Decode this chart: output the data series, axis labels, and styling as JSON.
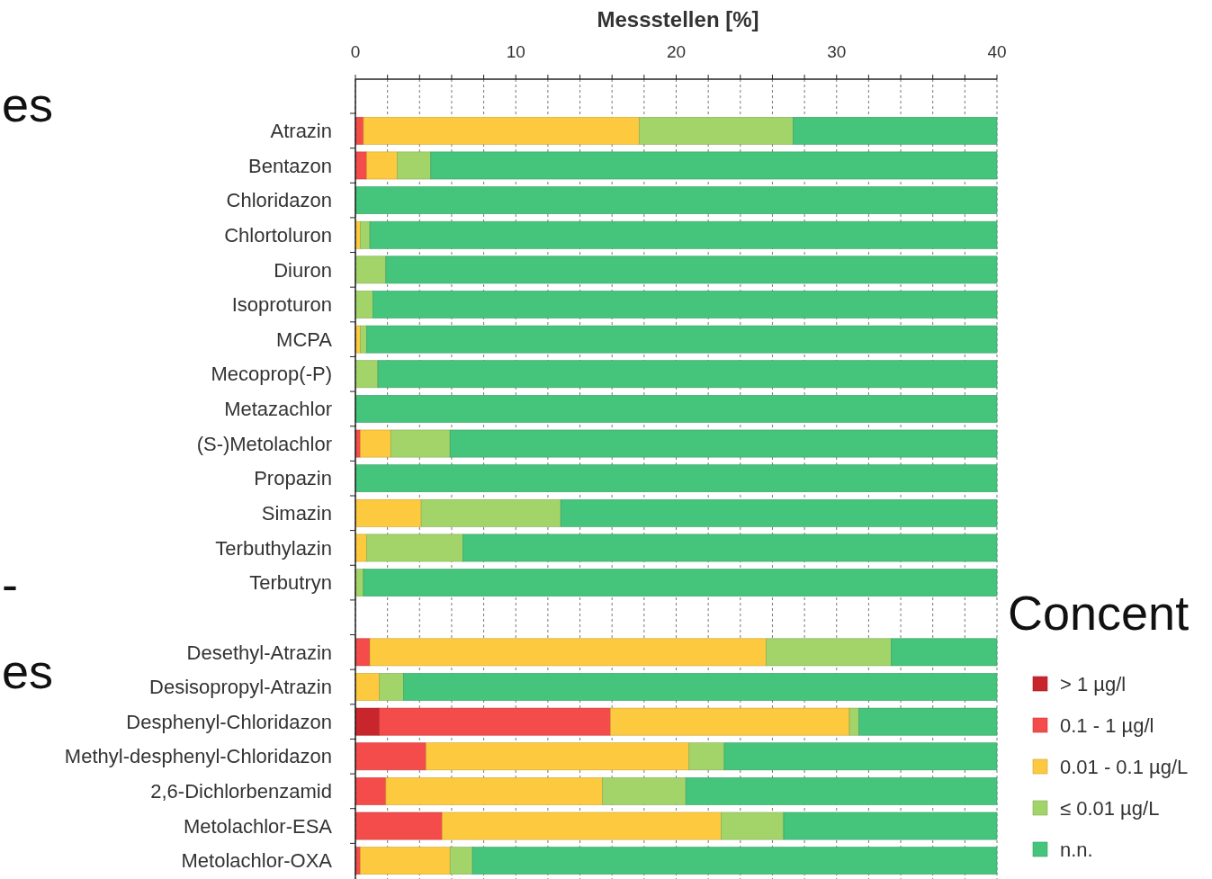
{
  "chart_data": {
    "type": "bar",
    "orientation": "horizontal",
    "stacked": true,
    "xlabel": "Messstellen [%]",
    "categories": [
      "Atrazin",
      "Bentazon",
      "Chloridazon",
      "Chlortoluron",
      "Diuron",
      "Isoproturon",
      "MCPA",
      "Mecoprop(-P)",
      "Metazachlor",
      "(S-)Metolachlor",
      "Propazin",
      "Simazin",
      "Terbuthylazin",
      "Terbutryn",
      null,
      "Desethyl-Atrazin",
      "Desisopropyl-Atrazin",
      "Desphenyl-Chloridazon",
      "Methyl-desphenyl-Chloridazon",
      "2,6-Dichlorbenzamid",
      "Metolachlor-ESA",
      "Metolachlor-OXA"
    ],
    "series": [
      {
        "name": "> 1 µg/l",
        "color": "#c8262c",
        "values": [
          0,
          0,
          0,
          0,
          0,
          0,
          0,
          0,
          null,
          0,
          0,
          0,
          0,
          0,
          null,
          0,
          0,
          1.5,
          0,
          0,
          0,
          0
        ]
      },
      {
        "name": "0.1 - 1 µg/l",
        "color": "#f44b4b",
        "values": [
          0.5,
          0.7,
          0,
          0,
          0,
          0,
          0,
          null,
          0,
          0.3,
          0,
          0,
          0,
          0,
          null,
          0.9,
          0,
          14.4,
          4.4,
          1.9,
          5.4,
          0.3
        ]
      },
      {
        "name": "0.01 - 0.1 µg/L",
        "color": "#fdc93e",
        "values": [
          17.2,
          1.9,
          0,
          0.3,
          0,
          0,
          0.3,
          0,
          0,
          1.9,
          0,
          4.1,
          0.7,
          0,
          null,
          24.7,
          1.5,
          14.9,
          16.4,
          13.5,
          17.4,
          5.6
        ]
      },
      {
        "name": "≤ 0.01 µg/L",
        "color": "#a3d46a",
        "values": [
          9.6,
          2.1,
          0,
          0.6,
          1.9,
          1.1,
          0.4,
          1.4,
          0,
          3.7,
          0,
          8.7,
          6.0,
          0.5,
          null,
          7.8,
          1.5,
          0.6,
          2.2,
          5.2,
          3.9,
          1.4
        ]
      },
      {
        "name": "n.n.",
        "color": "#45c47c",
        "values": [
          12.7,
          35.3,
          40,
          39.1,
          38.1,
          38.9,
          39.3,
          38.6,
          40,
          34.1,
          40,
          27.2,
          33.3,
          39.5,
          null,
          6.6,
          37.0,
          8.6,
          17.0,
          19.4,
          13.3,
          32.7
        ]
      }
    ],
    "xlim": [
      0,
      40
    ],
    "xticks": [
      0,
      {
        "value": 2,
        "label": null
      },
      {
        "value": 4,
        "label": null
      },
      {
        "value": 6,
        "label": null
      },
      {
        "value": 8,
        "label": null
      },
      10,
      {
        "value": 12,
        "label": null
      },
      {
        "value": 14,
        "label": null
      },
      {
        "value": 16,
        "label": null
      },
      {
        "value": 18,
        "label": null
      },
      20,
      {
        "value": 22,
        "label": null
      },
      {
        "value": 24,
        "label": null
      },
      {
        "value": 26,
        "label": null
      },
      {
        "value": 28,
        "label": null
      },
      30,
      {
        "value": 32,
        "label": null
      },
      {
        "value": 34,
        "label": null
      },
      {
        "value": 36,
        "label": null
      },
      {
        "value": 38,
        "label": null
      },
      40
    ],
    "grid": "x",
    "legend": "bottom right",
    "annotations": [
      "es",
      "-",
      "es",
      "Concent"
    ]
  }
}
